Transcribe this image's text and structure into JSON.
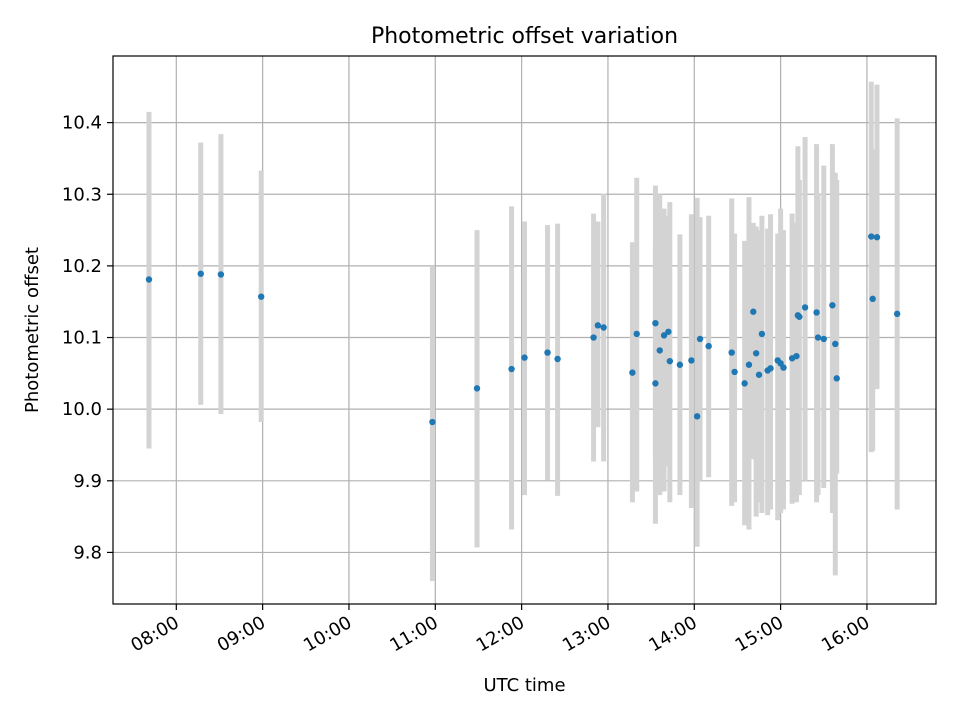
{
  "chart_data": {
    "type": "scatter",
    "title": "Photometric offset variation",
    "xlabel": "UTC time",
    "ylabel": "Photometric offset",
    "x_ticks": [
      "08:00",
      "09:00",
      "10:00",
      "11:00",
      "12:00",
      "13:00",
      "14:00",
      "15:00",
      "16:00"
    ],
    "y_ticks": [
      "9.8",
      "9.9",
      "10.0",
      "10.1",
      "10.2",
      "10.3",
      "10.4"
    ],
    "xlim": [
      "07:16",
      "16:48"
    ],
    "ylim": [
      9.728,
      10.493
    ],
    "grid": true,
    "colors": {
      "points": "#1f77b4",
      "error_bars": "#d3d3d3",
      "grid": "#b0b0b0"
    },
    "series": [
      {
        "x": [
          "07:41",
          "08:17",
          "08:31",
          "08:59",
          "10:58",
          "11:29",
          "11:53",
          "12:02",
          "12:18",
          "12:25",
          "12:50",
          "12:53",
          "12:57",
          "13:17",
          "13:20",
          "13:33",
          "13:33",
          "13:36",
          "13:39",
          "13:42",
          "13:43",
          "13:50",
          "13:58",
          "14:02",
          "14:04",
          "14:10",
          "14:26",
          "14:28",
          "14:35",
          "14:38",
          "14:41",
          "14:43",
          "14:45",
          "14:47",
          "14:51",
          "14:53",
          "14:58",
          "15:00",
          "15:02",
          "15:08",
          "15:11",
          "15:12",
          "15:13",
          "15:17",
          "15:25",
          "15:26",
          "15:30",
          "15:36",
          "15:38",
          "15:39",
          "16:03",
          "16:04",
          "16:07",
          "16:21"
        ],
        "y": [
          10.181,
          10.189,
          10.188,
          10.157,
          9.982,
          10.029,
          10.056,
          10.072,
          10.079,
          10.07,
          10.1,
          10.117,
          10.114,
          10.051,
          10.105,
          10.12,
          10.036,
          10.082,
          10.103,
          10.108,
          10.067,
          10.062,
          10.068,
          9.99,
          10.098,
          10.088,
          10.079,
          10.052,
          10.036,
          10.062,
          10.136,
          10.078,
          10.048,
          10.105,
          10.054,
          10.057,
          10.068,
          10.064,
          10.058,
          10.071,
          10.074,
          10.131,
          10.129,
          10.142,
          10.135,
          10.1,
          10.098,
          10.145,
          10.091,
          10.043,
          10.241,
          10.154,
          10.24,
          10.133
        ],
        "yerr_low": [
          9.945,
          10.006,
          9.993,
          9.982,
          9.76,
          9.807,
          9.832,
          9.88,
          9.901,
          9.879,
          9.927,
          9.975,
          9.927,
          9.87,
          9.885,
          9.84,
          9.93,
          9.88,
          9.885,
          9.92,
          9.87,
          9.88,
          9.862,
          9.808,
          9.9,
          9.905,
          9.865,
          9.87,
          9.838,
          9.832,
          9.93,
          9.85,
          9.87,
          9.855,
          9.852,
          9.86,
          9.845,
          9.855,
          9.86,
          9.868,
          9.87,
          9.886,
          9.88,
          9.9,
          9.87,
          9.88,
          9.89,
          9.855,
          9.768,
          9.91,
          9.94,
          9.942,
          10.028,
          9.86
        ],
        "yerr_high": [
          10.415,
          10.372,
          10.384,
          10.333,
          10.2,
          10.25,
          10.283,
          10.262,
          10.257,
          10.259,
          10.273,
          10.262,
          10.301,
          10.233,
          10.323,
          10.312,
          10.23,
          10.3,
          10.28,
          10.27,
          10.289,
          10.244,
          10.272,
          10.295,
          10.268,
          10.27,
          10.294,
          10.245,
          10.235,
          10.296,
          10.26,
          10.255,
          10.25,
          10.27,
          10.252,
          10.272,
          10.245,
          10.28,
          10.25,
          10.273,
          10.26,
          10.367,
          10.32,
          10.38,
          10.37,
          10.3,
          10.34,
          10.37,
          10.33,
          10.32,
          10.457,
          10.363,
          10.453,
          10.406
        ]
      }
    ]
  }
}
